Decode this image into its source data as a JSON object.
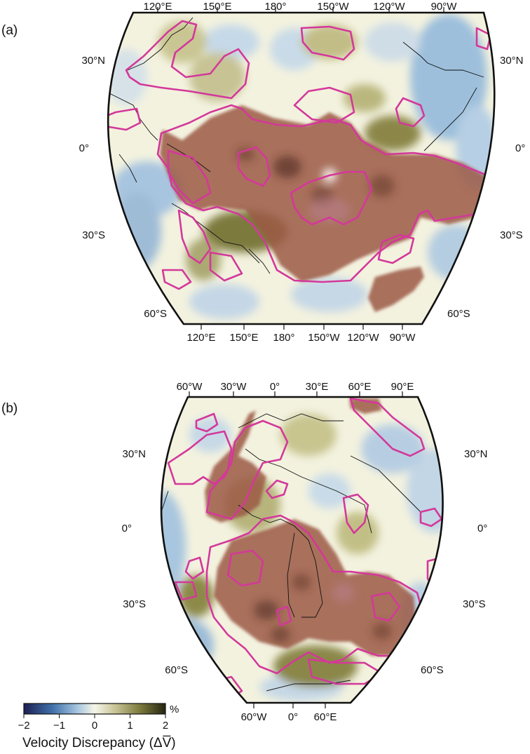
{
  "panels": [
    {
      "letter": "(a)",
      "top_lon_labels": [
        "120°E",
        "150°E",
        "180°",
        "150°W",
        "120°W",
        "90°W"
      ],
      "bottom_lon_labels": [
        "120°E",
        "150°E",
        "180°",
        "150°W",
        "120°W",
        "90°W"
      ],
      "lat_labels_left": [
        "30°N",
        "0°",
        "30°S",
        "60°S"
      ],
      "lat_labels_right": [
        "30°N",
        "0°",
        "30°S",
        "60°S"
      ]
    },
    {
      "letter": "(b)",
      "top_lon_labels": [
        "60°W",
        "30°W",
        "0°",
        "30°E",
        "60°E",
        "90°E"
      ],
      "bottom_lon_labels": [
        "60°W",
        "0°",
        "60°E"
      ],
      "lat_labels_left": [
        "30°N",
        "0°",
        "30°S",
        "60°S"
      ],
      "lat_labels_right": [
        "30°N",
        "0°",
        "30°S",
        "60°S"
      ]
    }
  ],
  "colorbar": {
    "ticks": [
      "−2",
      "−1",
      "0",
      "1",
      "2"
    ],
    "unit": "%",
    "title": "Velocity Discrepancy (ΔV̅)",
    "range": [
      -2,
      2
    ],
    "colors": [
      "#1d1f52",
      "#3f6fa8",
      "#a7c6df",
      "#f6f6e8",
      "#c7c293",
      "#7b7a3c",
      "#262411"
    ]
  },
  "colors": {
    "contour": "#d4389a",
    "anomaly_fill": "#9c5a45",
    "coast": "#111111"
  }
}
